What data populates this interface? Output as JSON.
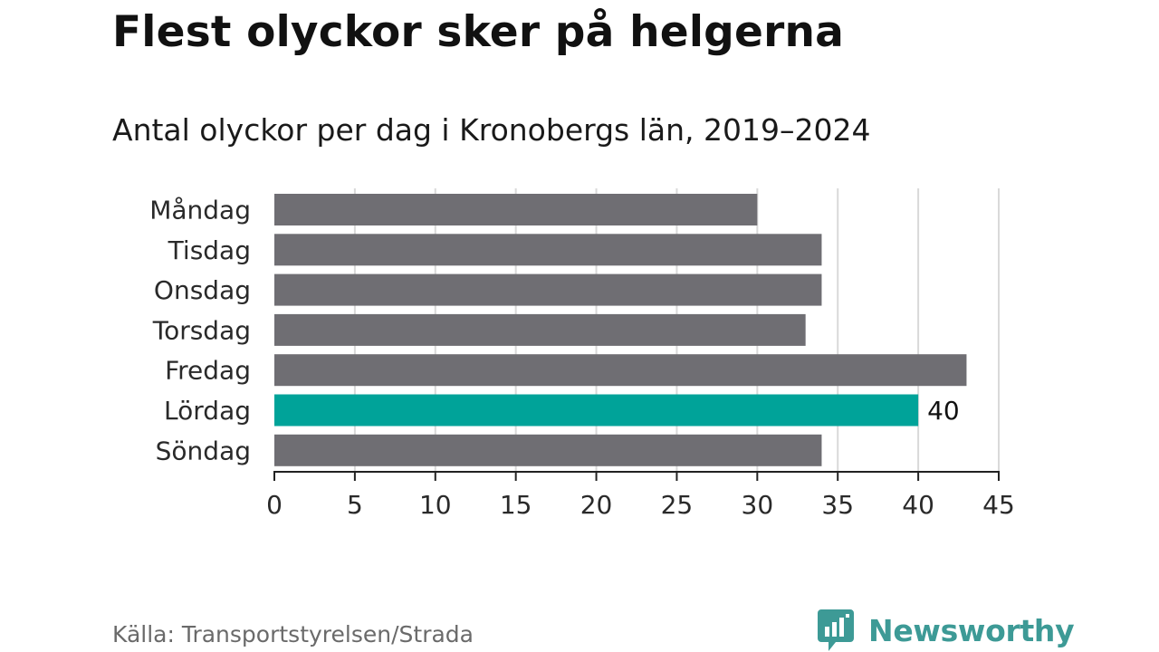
{
  "title": "Flest olyckor sker på helgerna",
  "subtitle": "Antal olyckor per dag i Kronobergs län, 2019–2024",
  "source": "Källa: Transportstyrelsen/Strada",
  "brand": "Newsworthy",
  "colors": {
    "bar": "#6f6e73",
    "highlight": "#00a399",
    "grid": "#d9d9d9",
    "axis": "#222222",
    "brand": "#3d9a96"
  },
  "chart_data": {
    "type": "bar",
    "orientation": "horizontal",
    "categories": [
      "Måndag",
      "Tisdag",
      "Onsdag",
      "Torsdag",
      "Fredag",
      "Lördag",
      "Söndag"
    ],
    "values": [
      30,
      34,
      34,
      33,
      43,
      40,
      34
    ],
    "highlight": "Lördag",
    "data_labels": [
      {
        "category": "Lördag",
        "label": "40"
      }
    ],
    "xlim": [
      0,
      45
    ],
    "xticks": [
      "0",
      "5",
      "10",
      "15",
      "20",
      "25",
      "30",
      "35",
      "40",
      "45"
    ],
    "xlabel": "",
    "ylabel": "",
    "grid": true
  }
}
